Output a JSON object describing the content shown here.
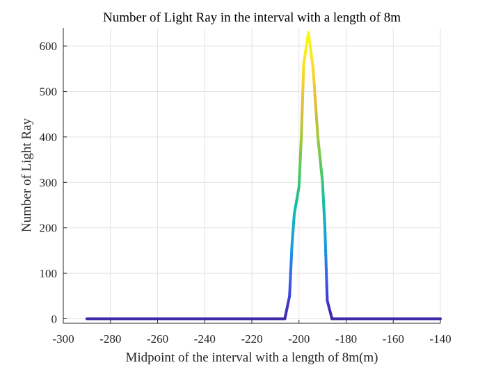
{
  "chart_data": {
    "type": "line",
    "title": "Number of Light Ray in the interval with a length of 8m",
    "xlabel": "Midpoint of the interval with a length of 8m(m)",
    "ylabel": "Number of Light Ray",
    "xlim": [
      -300,
      -140
    ],
    "ylim": [
      -10,
      640
    ],
    "grid": true,
    "xticks": [
      -300,
      -280,
      -260,
      -240,
      -220,
      -200,
      -180,
      -160,
      -140
    ],
    "yticks": [
      0,
      100,
      200,
      300,
      400,
      500,
      600
    ],
    "xtick_labels": [
      "-300",
      "-280",
      "-260",
      "-240",
      "-220",
      "-200",
      "-180",
      "-160",
      "-140"
    ],
    "ytick_labels": [
      "0",
      "100",
      "200",
      "300",
      "400",
      "500",
      "600"
    ],
    "colormap": [
      "#3e26a8",
      "#3d53f1",
      "#1a9be1",
      "#0cb9b6",
      "#46c96b",
      "#9dc93a",
      "#e5bc3b",
      "#fbdc28",
      "#f9fb15"
    ],
    "series": [
      {
        "x": [
          -290,
          -206,
          -204,
          -203,
          -202,
          -200,
          -199,
          -198,
          -196,
          -194,
          -192,
          -190,
          -189,
          -188,
          -186,
          -140
        ],
        "y": [
          0,
          0,
          50,
          160,
          230,
          290,
          400,
          560,
          630,
          550,
          400,
          300,
          200,
          40,
          0,
          0
        ]
      }
    ]
  }
}
